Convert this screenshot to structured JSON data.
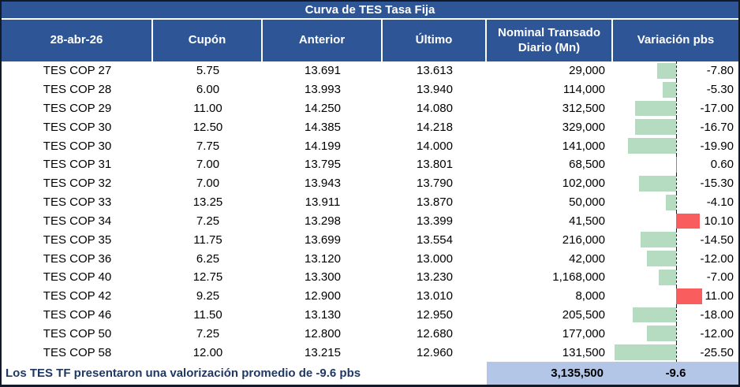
{
  "colors": {
    "header_blue": "#2E5596",
    "bar_negative": "#B5DBC0",
    "bar_positive": "#FA5D5D",
    "footer_band": "#B4C6E7",
    "footer_text": "#1F3864",
    "outer_border": "#121929"
  },
  "chart_data": {
    "type": "table",
    "title": "Curva de TES Tasa Fija",
    "date_header": "28-abr-26",
    "columns": [
      "28-abr-26",
      "Cupón",
      "Anterior",
      "Último",
      "Nominal Transado Diario (Mn)",
      "Variación pbs"
    ],
    "rows": [
      {
        "name": "TES COP 27",
        "cupon": "5.75",
        "anterior": "13.691",
        "ultimo": "13.613",
        "nominal": "29,000",
        "variacion": -7.8
      },
      {
        "name": "TES COP 28",
        "cupon": "6.00",
        "anterior": "13.993",
        "ultimo": "13.940",
        "nominal": "114,000",
        "variacion": -5.3
      },
      {
        "name": "TES COP 29",
        "cupon": "11.00",
        "anterior": "14.250",
        "ultimo": "14.080",
        "nominal": "312,500",
        "variacion": -17.0
      },
      {
        "name": "TES COP 30",
        "cupon": "12.50",
        "anterior": "14.385",
        "ultimo": "14.218",
        "nominal": "329,000",
        "variacion": -16.7
      },
      {
        "name": "TES COP 30",
        "cupon": "7.75",
        "anterior": "14.199",
        "ultimo": "14.000",
        "nominal": "141,000",
        "variacion": -19.9
      },
      {
        "name": "TES COP 31",
        "cupon": "7.00",
        "anterior": "13.795",
        "ultimo": "13.801",
        "nominal": "68,500",
        "variacion": 0.6
      },
      {
        "name": "TES COP 32",
        "cupon": "7.00",
        "anterior": "13.943",
        "ultimo": "13.790",
        "nominal": "102,000",
        "variacion": -15.3
      },
      {
        "name": "TES COP 33",
        "cupon": "13.25",
        "anterior": "13.911",
        "ultimo": "13.870",
        "nominal": "50,000",
        "variacion": -4.1
      },
      {
        "name": "TES COP 34",
        "cupon": "7.25",
        "anterior": "13.298",
        "ultimo": "13.399",
        "nominal": "41,500",
        "variacion": 10.1
      },
      {
        "name": "TES COP 35",
        "cupon": "11.75",
        "anterior": "13.699",
        "ultimo": "13.554",
        "nominal": "216,000",
        "variacion": -14.5
      },
      {
        "name": "TES COP 36",
        "cupon": "6.25",
        "anterior": "13.120",
        "ultimo": "13.000",
        "nominal": "42,000",
        "variacion": -12.0
      },
      {
        "name": "TES COP 40",
        "cupon": "12.75",
        "anterior": "13.300",
        "ultimo": "13.230",
        "nominal": "1,168,000",
        "variacion": -7.0
      },
      {
        "name": "TES COP 42",
        "cupon": "9.25",
        "anterior": "12.900",
        "ultimo": "13.010",
        "nominal": "8,000",
        "variacion": 11.0
      },
      {
        "name": "TES COP 46",
        "cupon": "11.50",
        "anterior": "13.130",
        "ultimo": "12.950",
        "nominal": "205,500",
        "variacion": -18.0
      },
      {
        "name": "TES COP 50",
        "cupon": "7.25",
        "anterior": "12.800",
        "ultimo": "12.680",
        "nominal": "177,000",
        "variacion": -12.0
      },
      {
        "name": "TES COP 58",
        "cupon": "12.00",
        "anterior": "13.215",
        "ultimo": "12.960",
        "nominal": "131,500",
        "variacion": -25.5
      }
    ],
    "bar_axis": {
      "min": -26,
      "max": 26,
      "zero_position": "center",
      "axis_style": "dashed-black"
    },
    "totals": {
      "nominal_total": "3,135,500",
      "variacion_promedio": "-9.6"
    },
    "footnote": "Los TES TF presentaron una valorización promedio de -9.6 pbs",
    "legend_position": "none",
    "grid": false
  }
}
